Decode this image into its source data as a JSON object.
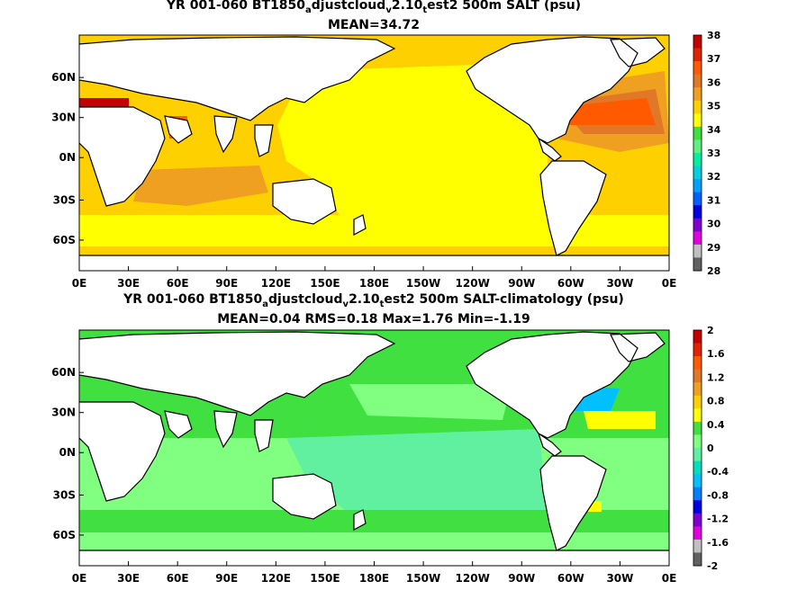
{
  "panels": [
    {
      "title_parts": [
        "YR 001-060 BT1850",
        "a",
        "djustcloud",
        "v",
        "2.10",
        "t",
        "est2 500m SALT (psu)"
      ],
      "stats": "MEAN=34.72",
      "colorbar": {
        "labels": [
          "38",
          "37",
          "36",
          "35",
          "34",
          "33",
          "32",
          "31",
          "30",
          "29",
          "28"
        ],
        "colors": [
          "#c40000",
          "#e02400",
          "#ff5a00",
          "#e07828",
          "#f0a020",
          "#ffd000",
          "#ffff00",
          "#40e040",
          "#60f080",
          "#00f0a0",
          "#00d0e0",
          "#00a0ff",
          "#0060ff",
          "#0000e0",
          "#8000d0",
          "#e000e0",
          "#c0c0c0",
          "#606060"
        ]
      }
    },
    {
      "title_parts": [
        "YR 001-060 BT1850",
        "a",
        "djustcloud",
        "v",
        "2.10",
        "t",
        "est2 500m SALT-climatology (psu)"
      ],
      "stats": "MEAN=0.04   RMS=0.18   Max=1.76   Min=-1.19",
      "colorbar": {
        "labels": [
          "2",
          "1.6",
          "1.2",
          "0.8",
          "0.4",
          "0",
          "-0.4",
          "-0.8",
          "-1.2",
          "-1.6",
          "-2"
        ],
        "colors": [
          "#c40000",
          "#e02400",
          "#ff5a00",
          "#e07828",
          "#f0a020",
          "#ffd000",
          "#ffff00",
          "#40e040",
          "#80ff80",
          "#60f0a0",
          "#00e0c0",
          "#00c0ff",
          "#0080ff",
          "#0000e0",
          "#8000d0",
          "#e000e0",
          "#c0c0c0",
          "#606060"
        ]
      }
    }
  ],
  "lon_labels": [
    "0E",
    "30E",
    "60E",
    "90E",
    "120E",
    "150E",
    "180E",
    "150W",
    "120W",
    "90W",
    "60W",
    "30W",
    "0E"
  ],
  "lat_labels": [
    "60N",
    "30N",
    "0N",
    "30S",
    "60S"
  ]
}
